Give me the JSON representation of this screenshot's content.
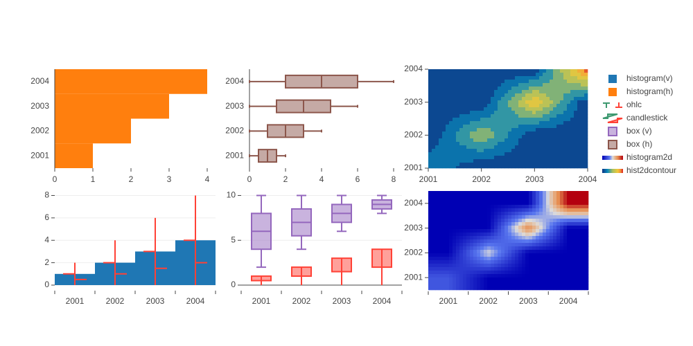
{
  "chart_data": [
    {
      "type": "histogram_h",
      "categories": [
        "2001",
        "2002",
        "2003",
        "2004"
      ],
      "series": [
        {
          "name": "histogram(h)",
          "color": "#ff7f0e",
          "values": [
            1,
            2,
            3,
            4
          ]
        }
      ],
      "xlim": [
        0,
        4
      ],
      "xticks": [
        0,
        1,
        2,
        3,
        4
      ],
      "grid": false
    },
    {
      "type": "box_h",
      "categories": [
        "2001",
        "2002",
        "2003",
        "2004"
      ],
      "series": [
        {
          "name": "box (h)",
          "color": "#8c564b",
          "min": [
            0,
            0,
            0,
            0
          ],
          "q1": [
            0.5,
            1,
            1.5,
            2
          ],
          "median": [
            1,
            2,
            3,
            4
          ],
          "q3": [
            1.5,
            3,
            4.5,
            6
          ],
          "max": [
            2,
            4,
            6,
            8
          ]
        }
      ],
      "xlim": [
        0,
        8
      ],
      "xticks": [
        0,
        2,
        4,
        6,
        8
      ],
      "grid": false
    },
    {
      "type": "contour",
      "name": "hist2dcontour",
      "x": [
        2001,
        2002,
        2003,
        2004
      ],
      "y": [
        2001,
        2002,
        2003,
        2004
      ],
      "z": [
        [
          1,
          0,
          0,
          0
        ],
        [
          0,
          2,
          0,
          0
        ],
        [
          0,
          0,
          3,
          0
        ],
        [
          0,
          0,
          0,
          4
        ]
      ],
      "xlim": [
        2001,
        2004
      ],
      "ylim": [
        2001,
        2004
      ],
      "xticks": [
        2001,
        2002,
        2003,
        2004
      ],
      "yticks": [
        2001,
        2002,
        2003,
        2004
      ],
      "colorscale": [
        [
          0,
          "#0c3383"
        ],
        [
          0.25,
          "#0a88ba"
        ],
        [
          0.5,
          "#a8c060"
        ],
        [
          0.75,
          "#f2c838"
        ],
        [
          0.88,
          "#f28f38"
        ],
        [
          1,
          "#d91e1e"
        ]
      ]
    },
    {
      "type": "bar_ohlc",
      "categories": [
        "2001",
        "2002",
        "2003",
        "2004"
      ],
      "series": [
        {
          "name": "histogram(v)",
          "type": "bar",
          "color": "#1f77b4",
          "values": [
            1,
            2,
            3,
            4
          ]
        },
        {
          "name": "ohlc",
          "type": "ohlc",
          "increasing_color": "#3d9970",
          "decreasing_color": "#ff4136",
          "open": [
            1,
            2,
            3,
            4
          ],
          "high": [
            2,
            4,
            6,
            8
          ],
          "low": [
            0,
            0,
            0,
            0
          ],
          "close": [
            0.5,
            1,
            1.5,
            2
          ]
        }
      ],
      "ylim": [
        0,
        8.4
      ],
      "yticks": [
        0,
        2,
        4,
        6,
        8
      ],
      "grid": true
    },
    {
      "type": "box_candle",
      "categories": [
        "2001",
        "2002",
        "2003",
        "2004"
      ],
      "series": [
        {
          "name": "box (v)",
          "type": "box",
          "color": "#9467bd",
          "min": [
            2,
            4,
            6,
            8
          ],
          "q1": [
            4,
            5.5,
            7,
            8.5
          ],
          "median": [
            6,
            7,
            8,
            9
          ],
          "q3": [
            8,
            8.5,
            9,
            9.5
          ],
          "max": [
            10,
            10,
            10,
            10
          ]
        },
        {
          "name": "candlestick",
          "type": "candlestick",
          "increasing_color": "#3d9970",
          "decreasing_color": "#ff4136",
          "open": [
            1,
            2,
            3,
            4
          ],
          "high": [
            1,
            2,
            3,
            4
          ],
          "low": [
            0,
            0,
            0,
            0
          ],
          "close": [
            0.5,
            1,
            1.5,
            2
          ]
        }
      ],
      "ylim": [
        0,
        10.5
      ],
      "yticks": [
        0,
        5,
        10
      ],
      "grid": true
    },
    {
      "type": "heatmap",
      "name": "histogram2d",
      "x": [
        2001,
        2002,
        2003,
        2004
      ],
      "y": [
        2001,
        2002,
        2003,
        2004
      ],
      "z": [
        [
          1,
          0,
          0,
          0
        ],
        [
          0,
          2,
          0,
          0
        ],
        [
          0,
          0,
          3,
          0
        ],
        [
          0,
          0,
          0,
          4
        ]
      ],
      "xlim": [
        2000.5,
        2004.5
      ],
      "ylim": [
        2000.5,
        2004.5
      ],
      "xticks": [
        2001,
        2002,
        2003,
        2004
      ],
      "yticks": [
        2001,
        2002,
        2003,
        2004
      ],
      "colorscale": [
        [
          0,
          "#0000b4"
        ],
        [
          0.35,
          "#5a78f0"
        ],
        [
          0.5,
          "#dcdcdc"
        ],
        [
          0.62,
          "#e6b48c"
        ],
        [
          0.75,
          "#e68c50"
        ],
        [
          1,
          "#b4000f"
        ]
      ]
    }
  ]
}
